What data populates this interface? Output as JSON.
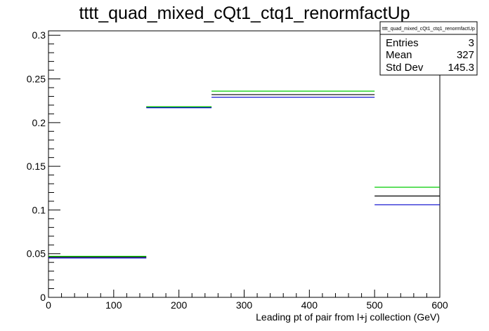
{
  "chart_data": {
    "type": "histogram-step",
    "title": "tttt_quad_mixed_cQt1_ctq1_renormfactUp",
    "xlabel": "Leading pt of pair from l+j collection (GeV)",
    "ylabel": "",
    "xlim": [
      0,
      600
    ],
    "ylim": [
      0,
      0.305
    ],
    "x_ticks": [
      0,
      100,
      200,
      300,
      400,
      500,
      600
    ],
    "x_tick_labels": [
      "0",
      "100",
      "200",
      "300",
      "400",
      "500",
      "600"
    ],
    "y_ticks": [
      0,
      0.05,
      0.1,
      0.15,
      0.2,
      0.25,
      0.3
    ],
    "y_tick_labels": [
      "0",
      "0.05",
      "0.1",
      "0.15",
      "0.2",
      "0.25",
      "0.3"
    ],
    "bin_edges": [
      0,
      150,
      250,
      500,
      600
    ],
    "series": [
      {
        "color": "#000000",
        "values": [
          0.046,
          0.218,
          0.232,
          0.116
        ]
      },
      {
        "color": "#00cc00",
        "values": [
          0.047,
          0.218,
          0.236,
          0.126
        ]
      },
      {
        "color": "#0000cc",
        "values": [
          0.045,
          0.217,
          0.229,
          0.106
        ]
      }
    ],
    "stats_box": {
      "title": "tttt_quad_mixed_cQt1_ctq1_renormfactUp",
      "rows": [
        {
          "label": "Entries",
          "value": "3"
        },
        {
          "label": "Mean",
          "value": "327"
        },
        {
          "label": "Std Dev",
          "value": "145.3"
        }
      ]
    },
    "legend": "top-right",
    "grid": false
  }
}
